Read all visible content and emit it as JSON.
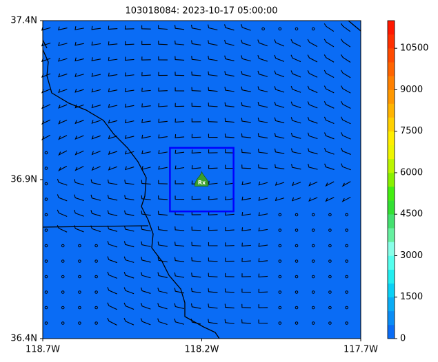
{
  "map": {
    "title": "103018084: 2023-10-17 05:00:00",
    "xlim": [
      -118.7,
      -117.7
    ],
    "ylim": [
      36.4,
      37.4
    ],
    "xticks": [
      {
        "value": -118.7,
        "label": "118.7W"
      },
      {
        "value": -118.2,
        "label": "118.2W"
      },
      {
        "value": -117.7,
        "label": "117.7W"
      }
    ],
    "yticks": [
      {
        "value": 36.4,
        "label": "36.4N"
      },
      {
        "value": 36.9,
        "label": "36.9N"
      },
      {
        "value": 37.4,
        "label": "37.4N"
      }
    ],
    "background_color": "#0a6cf5",
    "box": {
      "xlim": [
        -118.3,
        -118.1
      ],
      "ylim": [
        36.8,
        37.0
      ],
      "color": "#0000ff"
    },
    "marker": {
      "label": "Rx",
      "x": -118.2,
      "y": 36.89,
      "color": "#3aa02e"
    },
    "colorbar": {
      "lim": [
        0,
        11500
      ],
      "ticks": [
        0,
        1500,
        3000,
        4500,
        6000,
        7500,
        9000,
        10500
      ],
      "colors": [
        "#0a6cf5",
        "#0a8cf5",
        "#0aacf5",
        "#0ad0f5",
        "#22eef0",
        "#55ffee",
        "#88ffe8",
        "#66f0a0",
        "#44e070",
        "#33e033",
        "#44ee11",
        "#88f000",
        "#bbf500",
        "#eef500",
        "#ffee00",
        "#ffd000",
        "#ffb400",
        "#ff9800",
        "#ff8000",
        "#ff6400",
        "#ff4a00",
        "#ff3000",
        "#ff1800"
      ]
    }
  }
}
